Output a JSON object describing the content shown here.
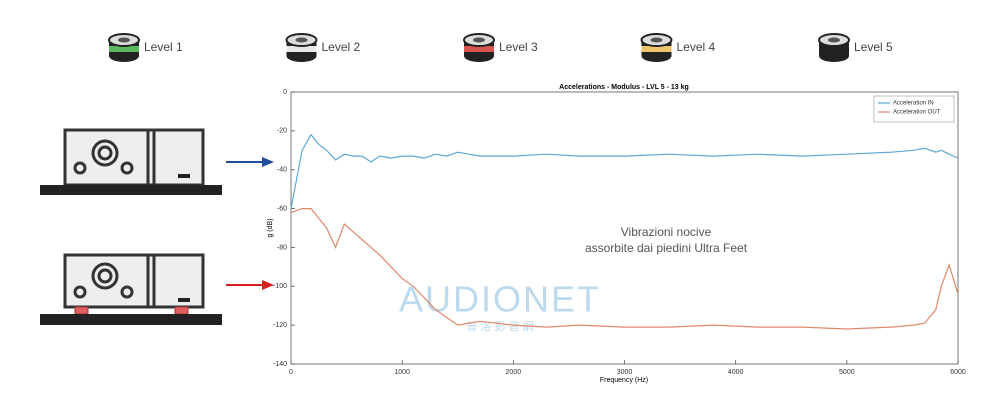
{
  "levels": [
    {
      "label": "Level 1",
      "color": "#5cb85c"
    },
    {
      "label": "Level 2",
      "color": "#e8e8e8"
    },
    {
      "label": "Level 3",
      "color": "#d9534f"
    },
    {
      "label": "Level 4",
      "color": "#f0c36d"
    },
    {
      "label": "Level 5",
      "color": "#222222"
    }
  ],
  "annotation": [
    "Vibrazioni nocive",
    "assorbite dai piedini Ultra Feet"
  ],
  "watermark": {
    "title": "AUDIONET",
    "subtitle": "普 洛 影 音 網"
  },
  "chart_data": {
    "type": "line",
    "title": "Accelerations - Modulus - LVL 5 - 13 kg",
    "x_label": "Frequency (Hz)",
    "y_label": "g (dB)",
    "x": [
      0,
      100,
      180,
      250,
      320,
      400,
      480,
      560,
      640,
      720,
      800,
      900,
      1000,
      1100,
      1200,
      1300,
      1400,
      1500,
      1700,
      2000,
      2300,
      2600,
      3000,
      3400,
      3800,
      4200,
      4600,
      5000,
      5400,
      5600,
      5700,
      5800,
      5850,
      5920,
      6000
    ],
    "series": [
      {
        "name": "Acceleration IN",
        "color": "#5fa8d3",
        "values": [
          -60,
          -30,
          -22,
          -27,
          -30,
          -35,
          -32,
          -33,
          -33,
          -36,
          -33,
          -34,
          -33,
          -33,
          -34,
          -32,
          -33,
          -31,
          -33,
          -33,
          -32,
          -33,
          -33,
          -32,
          -33,
          -32,
          -33,
          -32,
          -31,
          -30,
          -29,
          -31,
          -30,
          -32,
          -34
        ]
      },
      {
        "name": "Acceleration OUT",
        "color": "#e0896a",
        "values": [
          -62,
          -60,
          -60,
          -65,
          -70,
          -80,
          -68,
          -72,
          -76,
          -80,
          -84,
          -90,
          -96,
          -100,
          -106,
          -112,
          -116,
          -120,
          -118,
          -120,
          -121,
          -120,
          -121,
          -121,
          -120,
          -121,
          -121,
          -122,
          -121,
          -120,
          -119,
          -112,
          -100,
          -89,
          -104
        ]
      }
    ],
    "xlim": [
      0,
      6000
    ],
    "xticks": [
      0,
      1000,
      2000,
      3000,
      4000,
      5000,
      6000
    ],
    "ylim": [
      -140,
      0
    ],
    "yticks": [
      -140,
      -120,
      -100,
      -80,
      -60,
      -40,
      -20,
      0
    ],
    "legend": "upper right"
  }
}
